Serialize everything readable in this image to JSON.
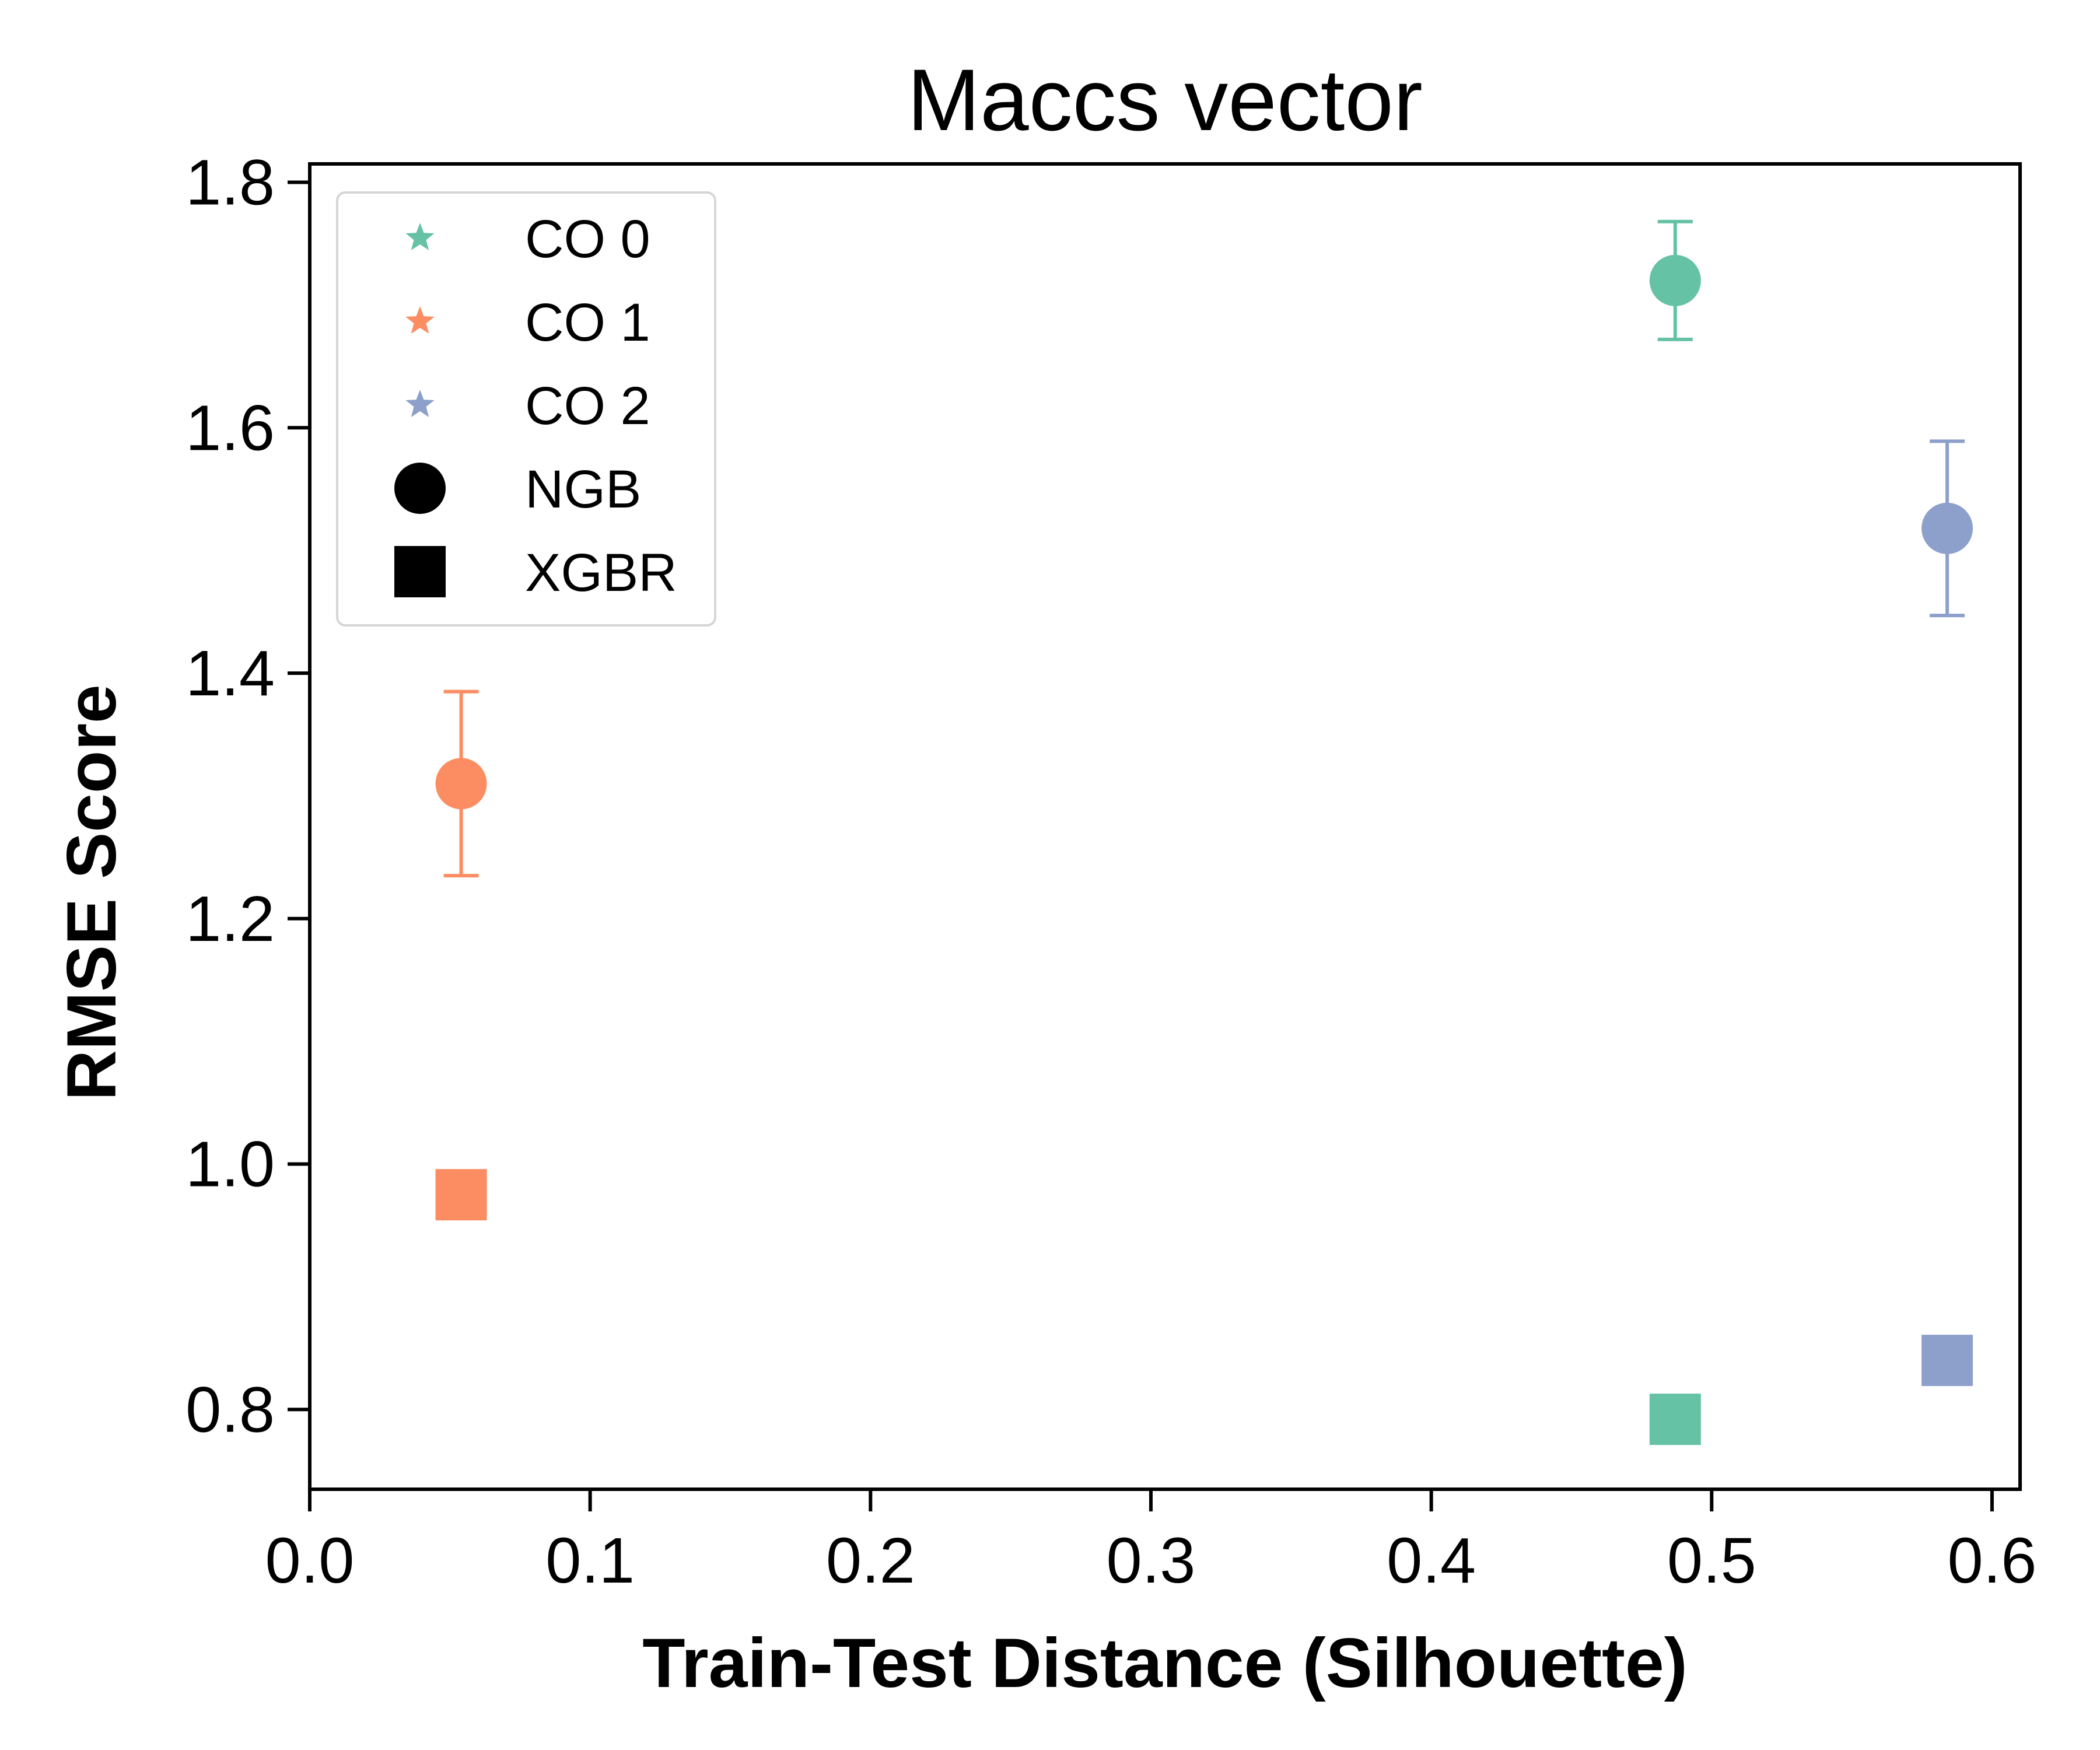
{
  "chart_data": {
    "type": "scatter",
    "title": "Maccs vector",
    "xlabel": "Train-Test Distance (Silhouette)",
    "ylabel": "RMSE Score",
    "xlim": [
      0.0,
      0.61
    ],
    "ylim": [
      0.735,
      1.815
    ],
    "xticks": [
      0.0,
      0.1,
      0.2,
      0.3,
      0.4,
      0.5,
      0.6
    ],
    "xtick_labels": [
      "0.0",
      "0.1",
      "0.2",
      "0.3",
      "0.4",
      "0.5",
      "0.6"
    ],
    "yticks": [
      0.8,
      1.0,
      1.2,
      1.4,
      1.6,
      1.8
    ],
    "ytick_labels": [
      "0.8",
      "1.0",
      "1.2",
      "1.4",
      "1.6",
      "1.8"
    ],
    "grid": false,
    "legend_position": "top-left",
    "legend": [
      {
        "label": "CO 0",
        "marker": "star",
        "color": "#66c2a5"
      },
      {
        "label": "CO 1",
        "marker": "star",
        "color": "#fc8d62"
      },
      {
        "label": "CO 2",
        "marker": "star",
        "color": "#8da0cb"
      },
      {
        "label": "NGB",
        "marker": "circle",
        "color": "#000000"
      },
      {
        "label": "XGBR",
        "marker": "square",
        "color": "#000000"
      }
    ],
    "series": [
      {
        "name": "NGB",
        "marker": "circle",
        "points": [
          {
            "group": "CO 0",
            "x": 0.487,
            "y": 1.72,
            "err_low": 1.672,
            "err_high": 1.768,
            "color": "#66c2a5"
          },
          {
            "group": "CO 1",
            "x": 0.054,
            "y": 1.31,
            "err_low": 1.235,
            "err_high": 1.385,
            "color": "#fc8d62"
          },
          {
            "group": "CO 2",
            "x": 0.584,
            "y": 1.518,
            "err_low": 1.447,
            "err_high": 1.589,
            "color": "#8da0cb"
          }
        ]
      },
      {
        "name": "XGBR",
        "marker": "square",
        "points": [
          {
            "group": "CO 0",
            "x": 0.487,
            "y": 0.792,
            "color": "#66c2a5"
          },
          {
            "group": "CO 1",
            "x": 0.054,
            "y": 0.975,
            "color": "#fc8d62"
          },
          {
            "group": "CO 2",
            "x": 0.584,
            "y": 0.84,
            "color": "#8da0cb"
          }
        ]
      }
    ]
  }
}
